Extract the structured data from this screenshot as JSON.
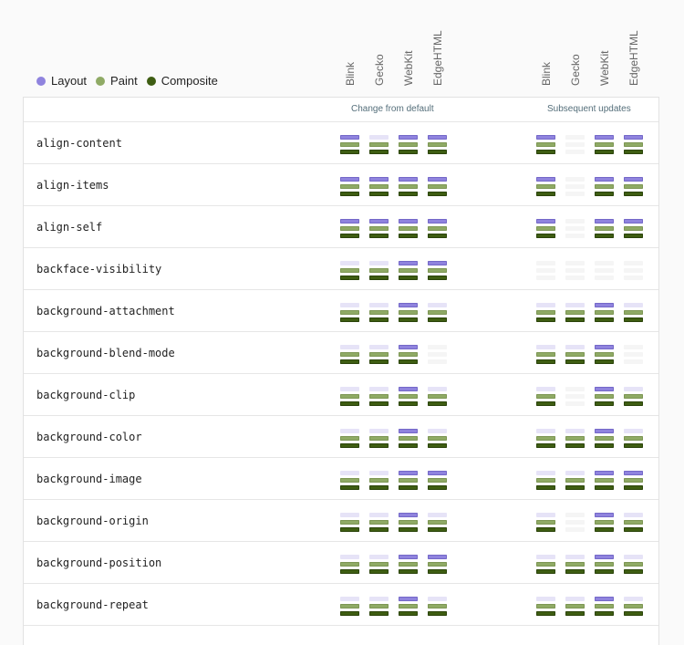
{
  "legend": [
    {
      "label": "Layout",
      "color": "#8f83de"
    },
    {
      "label": "Paint",
      "color": "#8faa65"
    },
    {
      "label": "Composite",
      "color": "#3e5d12"
    }
  ],
  "engines": [
    "Blink",
    "Gecko",
    "WebKit",
    "EdgeHTML"
  ],
  "sections": [
    {
      "title": "Change from default"
    },
    {
      "title": "Subsequent updates"
    }
  ],
  "rows": [
    {
      "name": "align-content",
      "change": [
        [
          1,
          1,
          1
        ],
        [
          0,
          1,
          1
        ],
        [
          1,
          1,
          1
        ],
        [
          1,
          1,
          1
        ]
      ],
      "subsequent": [
        [
          1,
          1,
          1
        ],
        null,
        [
          1,
          1,
          1
        ],
        [
          1,
          1,
          1
        ]
      ]
    },
    {
      "name": "align-items",
      "change": [
        [
          1,
          1,
          1
        ],
        [
          1,
          1,
          1
        ],
        [
          1,
          1,
          1
        ],
        [
          1,
          1,
          1
        ]
      ],
      "subsequent": [
        [
          1,
          1,
          1
        ],
        null,
        [
          1,
          1,
          1
        ],
        [
          1,
          1,
          1
        ]
      ]
    },
    {
      "name": "align-self",
      "change": [
        [
          1,
          1,
          1
        ],
        [
          1,
          1,
          1
        ],
        [
          1,
          1,
          1
        ],
        [
          1,
          1,
          1
        ]
      ],
      "subsequent": [
        [
          1,
          1,
          1
        ],
        null,
        [
          1,
          1,
          1
        ],
        [
          1,
          1,
          1
        ]
      ]
    },
    {
      "name": "backface-visibility",
      "change": [
        [
          0,
          1,
          1
        ],
        [
          0,
          1,
          1
        ],
        [
          1,
          1,
          1
        ],
        [
          1,
          1,
          1
        ]
      ],
      "subsequent": [
        null,
        null,
        null,
        null
      ]
    },
    {
      "name": "background-attachment",
      "change": [
        [
          0,
          1,
          1
        ],
        [
          0,
          1,
          1
        ],
        [
          1,
          1,
          1
        ],
        [
          0,
          1,
          1
        ]
      ],
      "subsequent": [
        [
          0,
          1,
          1
        ],
        [
          0,
          1,
          1
        ],
        [
          1,
          1,
          1
        ],
        [
          0,
          1,
          1
        ]
      ]
    },
    {
      "name": "background-blend-mode",
      "change": [
        [
          0,
          1,
          1
        ],
        [
          0,
          1,
          1
        ],
        [
          1,
          1,
          1
        ],
        null
      ],
      "subsequent": [
        [
          0,
          1,
          1
        ],
        [
          0,
          1,
          1
        ],
        [
          1,
          1,
          1
        ],
        null
      ]
    },
    {
      "name": "background-clip",
      "change": [
        [
          0,
          1,
          1
        ],
        [
          0,
          1,
          1
        ],
        [
          1,
          1,
          1
        ],
        [
          0,
          1,
          1
        ]
      ],
      "subsequent": [
        [
          0,
          1,
          1
        ],
        null,
        [
          1,
          1,
          1
        ],
        [
          0,
          1,
          1
        ]
      ]
    },
    {
      "name": "background-color",
      "change": [
        [
          0,
          1,
          1
        ],
        [
          0,
          1,
          1
        ],
        [
          1,
          1,
          1
        ],
        [
          0,
          1,
          1
        ]
      ],
      "subsequent": [
        [
          0,
          1,
          1
        ],
        [
          0,
          1,
          1
        ],
        [
          1,
          1,
          1
        ],
        [
          0,
          1,
          1
        ]
      ]
    },
    {
      "name": "background-image",
      "change": [
        [
          0,
          1,
          1
        ],
        [
          0,
          1,
          1
        ],
        [
          1,
          1,
          1
        ],
        [
          1,
          1,
          1
        ]
      ],
      "subsequent": [
        [
          0,
          1,
          1
        ],
        [
          0,
          1,
          1
        ],
        [
          1,
          1,
          1
        ],
        [
          1,
          1,
          1
        ]
      ]
    },
    {
      "name": "background-origin",
      "change": [
        [
          0,
          1,
          1
        ],
        [
          0,
          1,
          1
        ],
        [
          1,
          1,
          1
        ],
        [
          0,
          1,
          1
        ]
      ],
      "subsequent": [
        [
          0,
          1,
          1
        ],
        null,
        [
          1,
          1,
          1
        ],
        [
          0,
          1,
          1
        ]
      ]
    },
    {
      "name": "background-position",
      "change": [
        [
          0,
          1,
          1
        ],
        [
          0,
          1,
          1
        ],
        [
          1,
          1,
          1
        ],
        [
          1,
          1,
          1
        ]
      ],
      "subsequent": [
        [
          0,
          1,
          1
        ],
        [
          0,
          1,
          1
        ],
        [
          1,
          1,
          1
        ],
        [
          0,
          1,
          1
        ]
      ]
    },
    {
      "name": "background-repeat",
      "change": [
        [
          0,
          1,
          1
        ],
        [
          0,
          1,
          1
        ],
        [
          1,
          1,
          1
        ],
        [
          0,
          1,
          1
        ]
      ],
      "subsequent": [
        [
          0,
          1,
          1
        ],
        [
          0,
          1,
          1
        ],
        [
          1,
          1,
          1
        ],
        [
          0,
          1,
          1
        ]
      ]
    }
  ]
}
